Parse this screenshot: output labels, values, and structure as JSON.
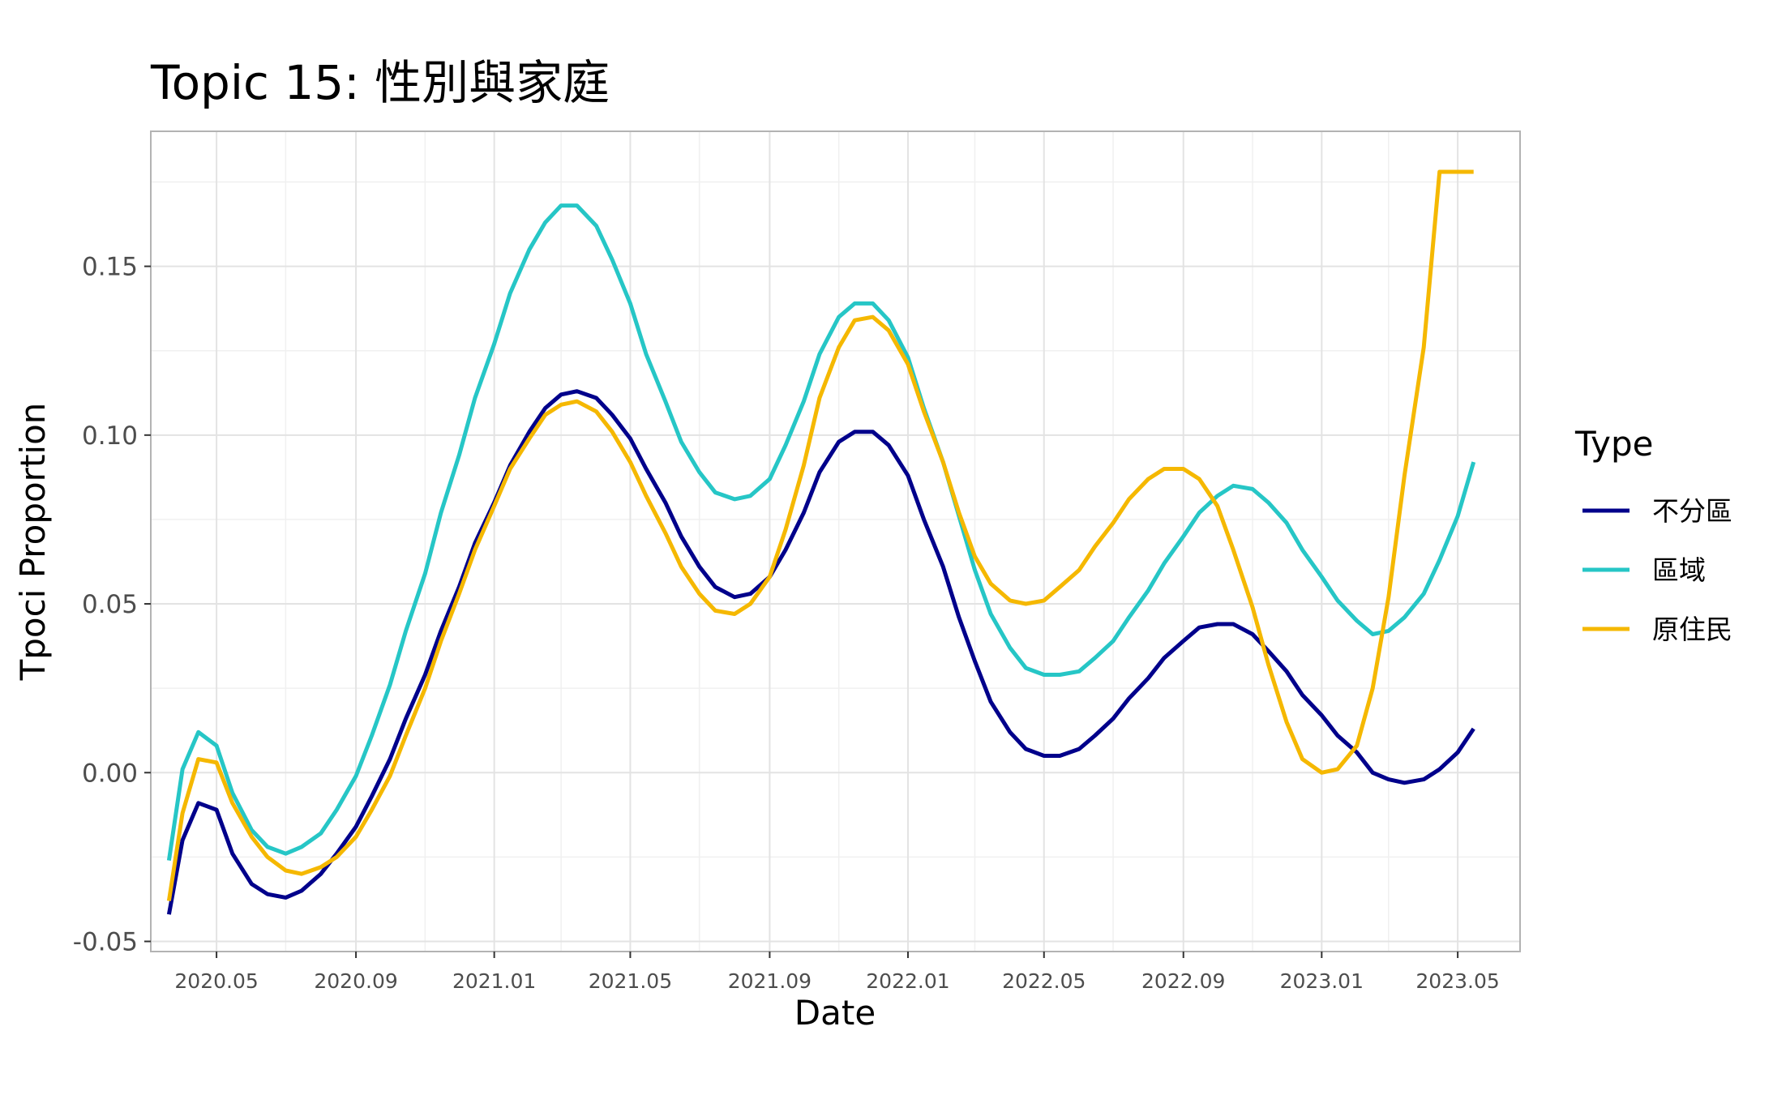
{
  "chart_data": {
    "type": "line",
    "title": "Topic 15: 性別與家庭",
    "xlabel": "Date",
    "ylabel": "Tpoci Proportion",
    "x_ticks": [
      "2020.05",
      "2020.09",
      "2021.01",
      "2021.05",
      "2021.09",
      "2022.01",
      "2022.05",
      "2022.09",
      "2023.01",
      "2023.05"
    ],
    "y_ticks": [
      "-0.05",
      "0.00",
      "0.05",
      "0.10",
      "0.15"
    ],
    "ylim": [
      -0.053,
      0.19
    ],
    "xlim": [
      "2020-03-04",
      "2023-06-25"
    ],
    "grid": true,
    "legend": {
      "title": "Type",
      "position": "right"
    },
    "x": [
      "2020-03-20",
      "2020-04-01",
      "2020-04-15",
      "2020-05-01",
      "2020-05-15",
      "2020-06-01",
      "2020-06-15",
      "2020-07-01",
      "2020-07-15",
      "2020-08-01",
      "2020-08-15",
      "2020-09-01",
      "2020-09-15",
      "2020-10-01",
      "2020-10-15",
      "2020-11-01",
      "2020-11-15",
      "2020-12-01",
      "2020-12-15",
      "2021-01-01",
      "2021-01-15",
      "2021-02-01",
      "2021-02-15",
      "2021-03-01",
      "2021-03-15",
      "2021-04-01",
      "2021-04-15",
      "2021-05-01",
      "2021-05-15",
      "2021-06-01",
      "2021-06-15",
      "2021-07-01",
      "2021-07-15",
      "2021-08-01",
      "2021-08-15",
      "2021-09-01",
      "2021-09-15",
      "2021-10-01",
      "2021-10-15",
      "2021-11-01",
      "2021-11-15",
      "2021-12-01",
      "2021-12-15",
      "2022-01-01",
      "2022-01-15",
      "2022-02-01",
      "2022-02-15",
      "2022-03-01",
      "2022-03-15",
      "2022-04-01",
      "2022-04-15",
      "2022-05-01",
      "2022-05-15",
      "2022-06-01",
      "2022-06-15",
      "2022-07-01",
      "2022-07-15",
      "2022-08-01",
      "2022-08-15",
      "2022-09-01",
      "2022-09-15",
      "2022-10-01",
      "2022-10-15",
      "2022-11-01",
      "2022-11-15",
      "2022-12-01",
      "2022-12-15",
      "2023-01-01",
      "2023-01-15",
      "2023-02-01",
      "2023-02-15",
      "2023-03-01",
      "2023-03-15",
      "2023-04-01",
      "2023-04-15",
      "2023-05-01",
      "2023-05-15"
    ],
    "series": [
      {
        "name": "不分區",
        "color": "#00008B",
        "values": [
          -0.042,
          -0.02,
          -0.009,
          -0.011,
          -0.024,
          -0.033,
          -0.036,
          -0.037,
          -0.035,
          -0.03,
          -0.024,
          -0.016,
          -0.007,
          0.004,
          0.016,
          0.029,
          0.042,
          0.055,
          0.068,
          0.08,
          0.091,
          0.101,
          0.108,
          0.112,
          0.113,
          0.111,
          0.106,
          0.099,
          0.09,
          0.08,
          0.07,
          0.061,
          0.055,
          0.052,
          0.053,
          0.058,
          0.066,
          0.077,
          0.089,
          0.098,
          0.101,
          0.101,
          0.097,
          0.088,
          0.075,
          0.061,
          0.046,
          0.033,
          0.021,
          0.012,
          0.007,
          0.005,
          0.005,
          0.007,
          0.011,
          0.016,
          0.022,
          0.028,
          0.034,
          0.039,
          0.043,
          0.044,
          0.044,
          0.041,
          0.036,
          0.03,
          0.023,
          0.017,
          0.011,
          0.006,
          0.0,
          -0.002,
          -0.003,
          -0.002,
          0.001,
          0.006,
          0.013
        ]
      },
      {
        "name": "區域",
        "color": "#26C6C6",
        "values": [
          -0.026,
          0.001,
          0.012,
          0.008,
          -0.006,
          -0.017,
          -0.022,
          -0.024,
          -0.022,
          -0.018,
          -0.011,
          -0.001,
          0.011,
          0.026,
          0.042,
          0.059,
          0.077,
          0.094,
          0.111,
          0.127,
          0.142,
          0.155,
          0.163,
          0.168,
          0.168,
          0.162,
          0.152,
          0.139,
          0.124,
          0.11,
          0.098,
          0.089,
          0.083,
          0.081,
          0.082,
          0.087,
          0.097,
          0.11,
          0.124,
          0.135,
          0.139,
          0.139,
          0.134,
          0.123,
          0.108,
          0.092,
          0.076,
          0.06,
          0.047,
          0.037,
          0.031,
          0.029,
          0.029,
          0.03,
          0.034,
          0.039,
          0.046,
          0.054,
          0.062,
          0.07,
          0.077,
          0.082,
          0.085,
          0.084,
          0.08,
          0.074,
          0.066,
          0.058,
          0.051,
          0.045,
          0.041,
          0.042,
          0.046,
          0.053,
          0.063,
          0.076,
          0.092
        ]
      },
      {
        "name": "原住民",
        "color": "#F5B800",
        "values": [
          -0.038,
          -0.012,
          0.004,
          0.003,
          -0.009,
          -0.019,
          -0.025,
          -0.029,
          -0.03,
          -0.028,
          -0.025,
          -0.019,
          -0.011,
          -0.001,
          0.011,
          0.025,
          0.039,
          0.053,
          0.066,
          0.079,
          0.09,
          0.099,
          0.106,
          0.109,
          0.11,
          0.107,
          0.101,
          0.092,
          0.082,
          0.071,
          0.061,
          0.053,
          0.048,
          0.047,
          0.05,
          0.058,
          0.072,
          0.091,
          0.111,
          0.126,
          0.134,
          0.135,
          0.131,
          0.121,
          0.107,
          0.092,
          0.077,
          0.064,
          0.056,
          0.051,
          0.05,
          0.051,
          0.055,
          0.06,
          0.067,
          0.074,
          0.081,
          0.087,
          0.09,
          0.09,
          0.087,
          0.079,
          0.066,
          0.049,
          0.032,
          0.015,
          0.004,
          0.0,
          0.001,
          0.008,
          0.025,
          0.052,
          0.088,
          0.126,
          0.178,
          0.178,
          0.178
        ]
      }
    ]
  }
}
